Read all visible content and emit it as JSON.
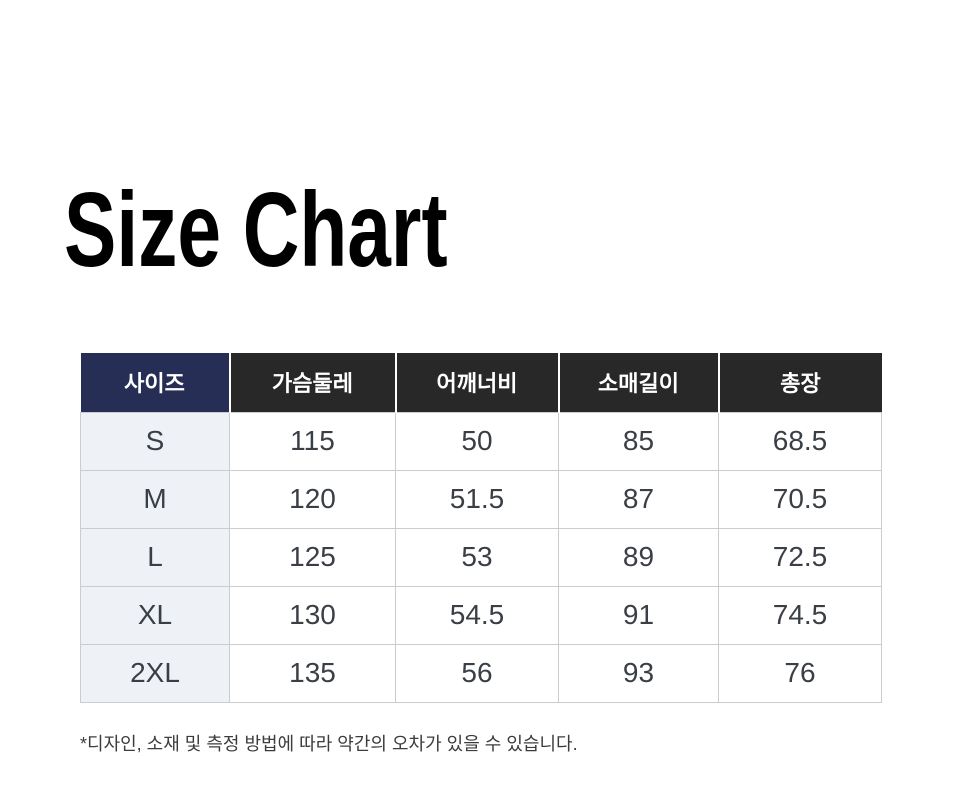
{
  "title": "Size Chart",
  "table": {
    "headers": [
      "사이즈",
      "가슴둘레",
      "어깨너비",
      "소매길이",
      "총장"
    ],
    "rows": [
      {
        "size": "S",
        "values": [
          "115",
          "50",
          "85",
          "68.5"
        ]
      },
      {
        "size": "M",
        "values": [
          "120",
          "51.5",
          "87",
          "70.5"
        ]
      },
      {
        "size": "L",
        "values": [
          "125",
          "53",
          "89",
          "72.5"
        ]
      },
      {
        "size": "XL",
        "values": [
          "130",
          "54.5",
          "91",
          "74.5"
        ]
      },
      {
        "size": "2XL",
        "values": [
          "135",
          "56",
          "93",
          "76"
        ]
      }
    ]
  },
  "footnote": "*디자인, 소재 및 측정 방법에 따라 약간의 오차가 있을 수 있습니다.",
  "colors": {
    "header_first_bg": "#262e55",
    "header_bg": "#282828",
    "header_text": "#ffffff",
    "row_label_bg": "#eef1f6",
    "border": "#c9cdd2",
    "cell_text": "#3a3f46"
  },
  "chart_data": {
    "type": "table",
    "title": "Size Chart",
    "columns": [
      "사이즈",
      "가슴둘레",
      "어깨너비",
      "소매길이",
      "총장"
    ],
    "rows": [
      [
        "S",
        115,
        50,
        85,
        68.5
      ],
      [
        "M",
        120,
        51.5,
        87,
        70.5
      ],
      [
        "L",
        125,
        53,
        89,
        72.5
      ],
      [
        "XL",
        130,
        54.5,
        91,
        74.5
      ],
      [
        "2XL",
        135,
        56,
        93,
        76
      ]
    ],
    "note": "*디자인, 소재 및 측정 방법에 따라 약간의 오차가 있을 수 있습니다."
  }
}
